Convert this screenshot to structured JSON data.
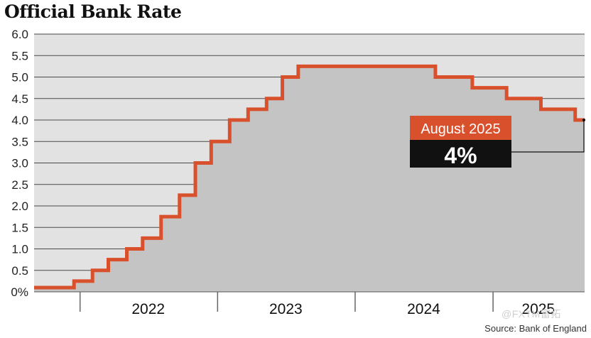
{
  "chart_data": {
    "type": "area",
    "title": "Official Bank Rate",
    "xlabel": "",
    "ylabel": "",
    "ylim": [
      0,
      6
    ],
    "xlim": [
      "2021-09-01",
      "2025-09-01"
    ],
    "y_ticks": [
      "0%",
      "0.5",
      "1.0",
      "1.5",
      "2.0",
      "2.5",
      "3.0",
      "3.5",
      "4.0",
      "4.5",
      "5.0",
      "5.5",
      "6.0"
    ],
    "x_labels": [
      {
        "label": "2022",
        "date": "2022-07-01"
      },
      {
        "label": "2023",
        "date": "2023-07-01"
      },
      {
        "label": "2024",
        "date": "2024-07-01"
      },
      {
        "label": "2025",
        "date": "2025-05-01"
      }
    ],
    "year_ticks": [
      "2022-01-01",
      "2023-01-01",
      "2024-01-01",
      "2025-01-01"
    ],
    "series": [
      {
        "x": [
          "2021-09-01",
          "2021-12-16",
          "2022-02-03",
          "2022-03-17",
          "2022-05-05",
          "2022-06-16",
          "2022-08-04",
          "2022-09-22",
          "2022-11-03",
          "2022-12-15",
          "2023-02-02",
          "2023-03-23",
          "2023-05-11",
          "2023-06-22",
          "2023-08-03",
          "2024-08-01",
          "2024-11-07",
          "2025-02-06",
          "2025-05-08",
          "2025-08-07",
          "2025-09-01"
        ],
        "y": [
          0.1,
          0.25,
          0.5,
          0.75,
          1.0,
          1.25,
          1.75,
          2.25,
          3.0,
          3.5,
          4.0,
          4.25,
          4.5,
          5.0,
          5.25,
          5.0,
          4.75,
          4.5,
          4.25,
          4.0,
          4.0
        ]
      }
    ],
    "annotation": {
      "label": "August 2025",
      "value": "4%",
      "date": "2025-08-07",
      "y": 4.0
    },
    "grid": true,
    "legend": "none",
    "colors": {
      "line": "#d9512c",
      "fill": "#c4c4c4",
      "plot_bg": "#e2e2e2",
      "grid": "#4a4a4a",
      "label_bg": "#d9512c",
      "value_bg": "#111111"
    },
    "source": "Source: Bank of England"
  },
  "watermark": "@FXTM富拓"
}
